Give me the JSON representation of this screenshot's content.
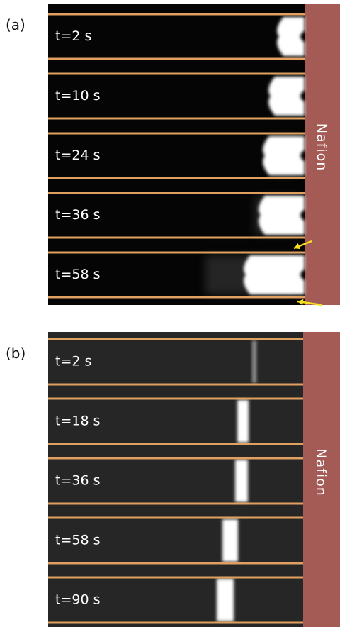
{
  "panels": [
    {
      "label": "(a)",
      "side_label": "Nafion",
      "frames": [
        "t=2 s",
        "t=10 s",
        "t=24 s",
        "t=36 s",
        "t=58 s"
      ]
    },
    {
      "label": "(b)",
      "side_label": "Nafion",
      "frames": [
        "t=2 s",
        "t=18 s",
        "t=36 s",
        "t=58 s",
        "t=90 s"
      ]
    }
  ]
}
